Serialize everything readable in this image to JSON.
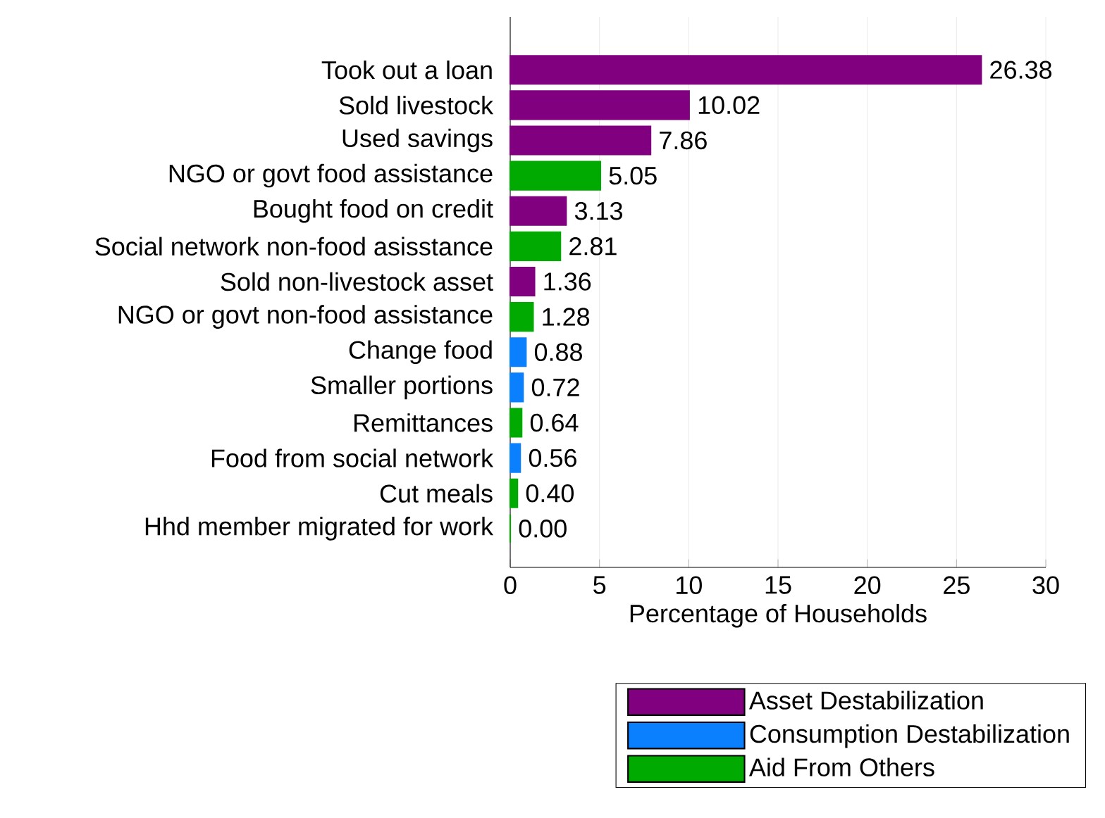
{
  "chart_data": {
    "type": "bar",
    "orientation": "horizontal",
    "stacked": true,
    "xlabel": "Percentage of Households",
    "categories": [
      "Took out a loan",
      "Sold livestock",
      "Used savings",
      "NGO or govt food assistance",
      "Bought food on credit",
      "Social network non-food asisstance",
      "Sold non-livestock asset",
      "NGO or govt non-food assistance",
      "Change food",
      "Smaller portions",
      "Remittances",
      "Food from social network",
      "Cut meals",
      "Hhd member migrated for work"
    ],
    "series": [
      {
        "name": "Asset Destabilization",
        "color": "#800080",
        "values": [
          26.38,
          10.02,
          7.86,
          null,
          3.13,
          null,
          1.36,
          null,
          null,
          null,
          null,
          null,
          null,
          null
        ],
        "value_labels": [
          "26.38",
          "10.02",
          "7.86",
          null,
          "3.13",
          null,
          "1.36",
          null,
          null,
          null,
          null,
          null,
          null,
          null
        ]
      },
      {
        "name": "Consumption Destabilization",
        "color": "#0a80ff",
        "values": [
          null,
          null,
          null,
          null,
          null,
          null,
          null,
          null,
          0.88,
          0.72,
          null,
          0.56,
          null,
          null
        ],
        "value_labels": [
          null,
          null,
          null,
          null,
          null,
          null,
          null,
          null,
          "0.88",
          "0.72",
          null,
          "0.56",
          null,
          null
        ]
      },
      {
        "name": "Aid From Others",
        "color": "#00aa00",
        "values": [
          null,
          null,
          null,
          5.05,
          null,
          2.81,
          null,
          1.28,
          null,
          null,
          0.64,
          null,
          0.4,
          0.0
        ],
        "value_labels": [
          null,
          null,
          null,
          "5.05",
          null,
          "2.81",
          null,
          "1.28",
          null,
          null,
          "0.64",
          null,
          "0.40",
          "0.00"
        ]
      }
    ],
    "xlim": [
      0,
      30
    ],
    "xticks": [
      0,
      5,
      10,
      15,
      20,
      25,
      30
    ],
    "grid": "x",
    "legend": "bottom"
  }
}
